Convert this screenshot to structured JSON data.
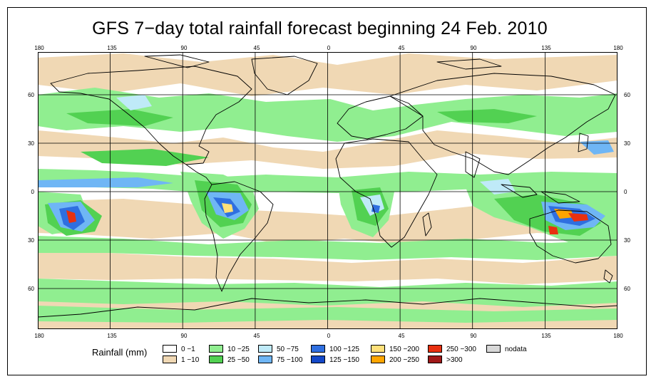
{
  "title": "GFS 7−day total rainfall forecast beginning 24 Feb. 2010",
  "axes": {
    "lon_labels": [
      "180",
      "135",
      "90",
      "45",
      "0",
      "45",
      "90",
      "135",
      "180"
    ],
    "lat_labels": [
      "60",
      "30",
      "0",
      "30",
      "60"
    ]
  },
  "legend": {
    "title": "Rainfall (mm)",
    "items": [
      {
        "label": "0 −1",
        "color": "#ffffff"
      },
      {
        "label": "1 −10",
        "color": "#f0d8b4"
      },
      {
        "label": "10 −25",
        "color": "#90ee90"
      },
      {
        "label": "25 −50",
        "color": "#52d152"
      },
      {
        "label": "50 −75",
        "color": "#bfeaf8"
      },
      {
        "label": "75 −100",
        "color": "#6fb6f5"
      },
      {
        "label": "100 −125",
        "color": "#2f6fe0"
      },
      {
        "label": "125 −150",
        "color": "#1448c8"
      },
      {
        "label": "150 −200",
        "color": "#ffe07a"
      },
      {
        "label": "200 −250",
        "color": "#ffa500"
      },
      {
        "label": "250 −300",
        "color": "#e83010"
      },
      {
        "label": ">300",
        "color": "#a01818"
      },
      {
        "label": "nodata",
        "color": "#d8d8d8"
      }
    ]
  }
}
